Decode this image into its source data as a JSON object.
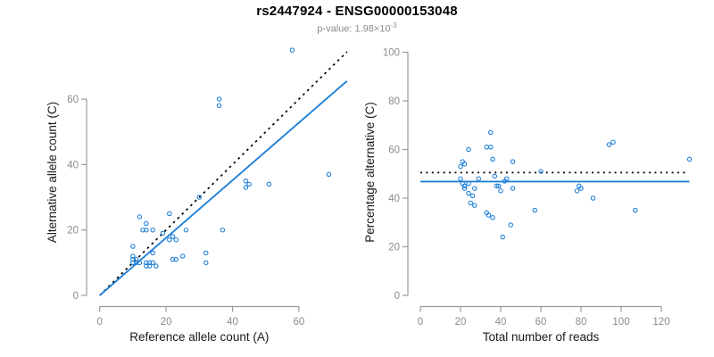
{
  "header": {
    "title": "rs2447924 - ENSG00000153048",
    "pvalue": {
      "label": "p-value:",
      "mantissa": "1.98×10",
      "exponent": "-3"
    }
  },
  "colors": {
    "points": "#2080d8",
    "fit_line": "#2080d8",
    "reference_line": "#000000",
    "axis": "#999999",
    "tick_label": "#8c8c8c",
    "axis_title": "#1a1a1a"
  },
  "chart_data": [
    {
      "name": "allele-count-scatter",
      "type": "scatter",
      "xlabel": "Reference allele count (A)",
      "ylabel": "Alternative allele count (C)",
      "xticks": [
        0,
        20,
        40,
        60
      ],
      "yticks": [
        0,
        20,
        40,
        60
      ],
      "xlim": [
        0,
        74
      ],
      "ylim": [
        0,
        78
      ],
      "grid": false,
      "points": [
        [
          58,
          75
        ],
        [
          36,
          60
        ],
        [
          36,
          58
        ],
        [
          69,
          37
        ],
        [
          44,
          35
        ],
        [
          45,
          34
        ],
        [
          44,
          33
        ],
        [
          51,
          34
        ],
        [
          30,
          30
        ],
        [
          12,
          24
        ],
        [
          14,
          22
        ],
        [
          21,
          25
        ],
        [
          13,
          20
        ],
        [
          14,
          20
        ],
        [
          16,
          20
        ],
        [
          26,
          20
        ],
        [
          37,
          20
        ],
        [
          19,
          19
        ],
        [
          22,
          18
        ],
        [
          21,
          17
        ],
        [
          23,
          17
        ],
        [
          10,
          15
        ],
        [
          16,
          13
        ],
        [
          10,
          12
        ],
        [
          22,
          11
        ],
        [
          23,
          11
        ],
        [
          25,
          12
        ],
        [
          32,
          13
        ],
        [
          32,
          10
        ],
        [
          10,
          11
        ],
        [
          10,
          10
        ],
        [
          11,
          11
        ],
        [
          11,
          10
        ],
        [
          12,
          10
        ],
        [
          14,
          10
        ],
        [
          14,
          9
        ],
        [
          15,
          10
        ],
        [
          15,
          9
        ],
        [
          16,
          10
        ],
        [
          17,
          9
        ]
      ],
      "lines": [
        {
          "name": "identity-50pct-line",
          "style": "dashed",
          "color": "#000000",
          "slope": 1,
          "intercept": 0,
          "x_range": [
            0,
            74.5
          ]
        },
        {
          "name": "fit-line",
          "style": "solid",
          "color": "#2080d8",
          "slope": 0.88,
          "intercept": 0,
          "x_range": [
            0,
            74.5
          ]
        }
      ]
    },
    {
      "name": "percentage-vs-coverage-scatter",
      "type": "scatter",
      "xlabel": "Total number of reads",
      "ylabel": "Percentage alternative (C)",
      "xticks": [
        0,
        20,
        40,
        60,
        80,
        100,
        120
      ],
      "yticks": [
        0,
        20,
        40,
        60,
        80,
        100
      ],
      "xlim": [
        0,
        135
      ],
      "ylim": [
        0,
        100
      ],
      "grid": false,
      "points": [
        [
          35,
          67
        ],
        [
          24,
          60
        ],
        [
          33,
          61
        ],
        [
          35,
          61
        ],
        [
          36,
          56
        ],
        [
          46,
          55
        ],
        [
          21,
          55
        ],
        [
          20,
          53
        ],
        [
          22,
          54
        ],
        [
          37,
          49
        ],
        [
          20,
          48
        ],
        [
          29,
          48
        ],
        [
          42,
          47
        ],
        [
          43,
          48
        ],
        [
          21,
          46
        ],
        [
          24,
          46
        ],
        [
          38,
          45
        ],
        [
          39,
          45
        ],
        [
          22,
          45
        ],
        [
          27,
          44
        ],
        [
          22,
          44
        ],
        [
          24,
          42
        ],
        [
          26,
          41
        ],
        [
          25,
          38
        ],
        [
          27,
          37
        ],
        [
          33,
          34
        ],
        [
          34,
          33
        ],
        [
          36,
          32
        ],
        [
          40,
          43
        ],
        [
          46,
          44
        ],
        [
          45,
          29
        ],
        [
          41,
          24
        ],
        [
          57,
          35
        ],
        [
          60,
          51
        ],
        [
          79,
          45
        ],
        [
          80,
          44
        ],
        [
          78,
          43
        ],
        [
          86,
          40
        ],
        [
          94,
          62
        ],
        [
          96,
          63
        ],
        [
          107,
          35
        ],
        [
          134,
          56
        ]
      ],
      "lines": [
        {
          "name": "expected-50pct-line",
          "style": "dotted",
          "color": "#000000",
          "y": 50.5,
          "x_range": [
            0,
            133
          ]
        },
        {
          "name": "mean-percentage-line",
          "style": "solid",
          "color": "#2080d8",
          "y": 46.8,
          "x_range": [
            0,
            134
          ]
        }
      ]
    }
  ]
}
